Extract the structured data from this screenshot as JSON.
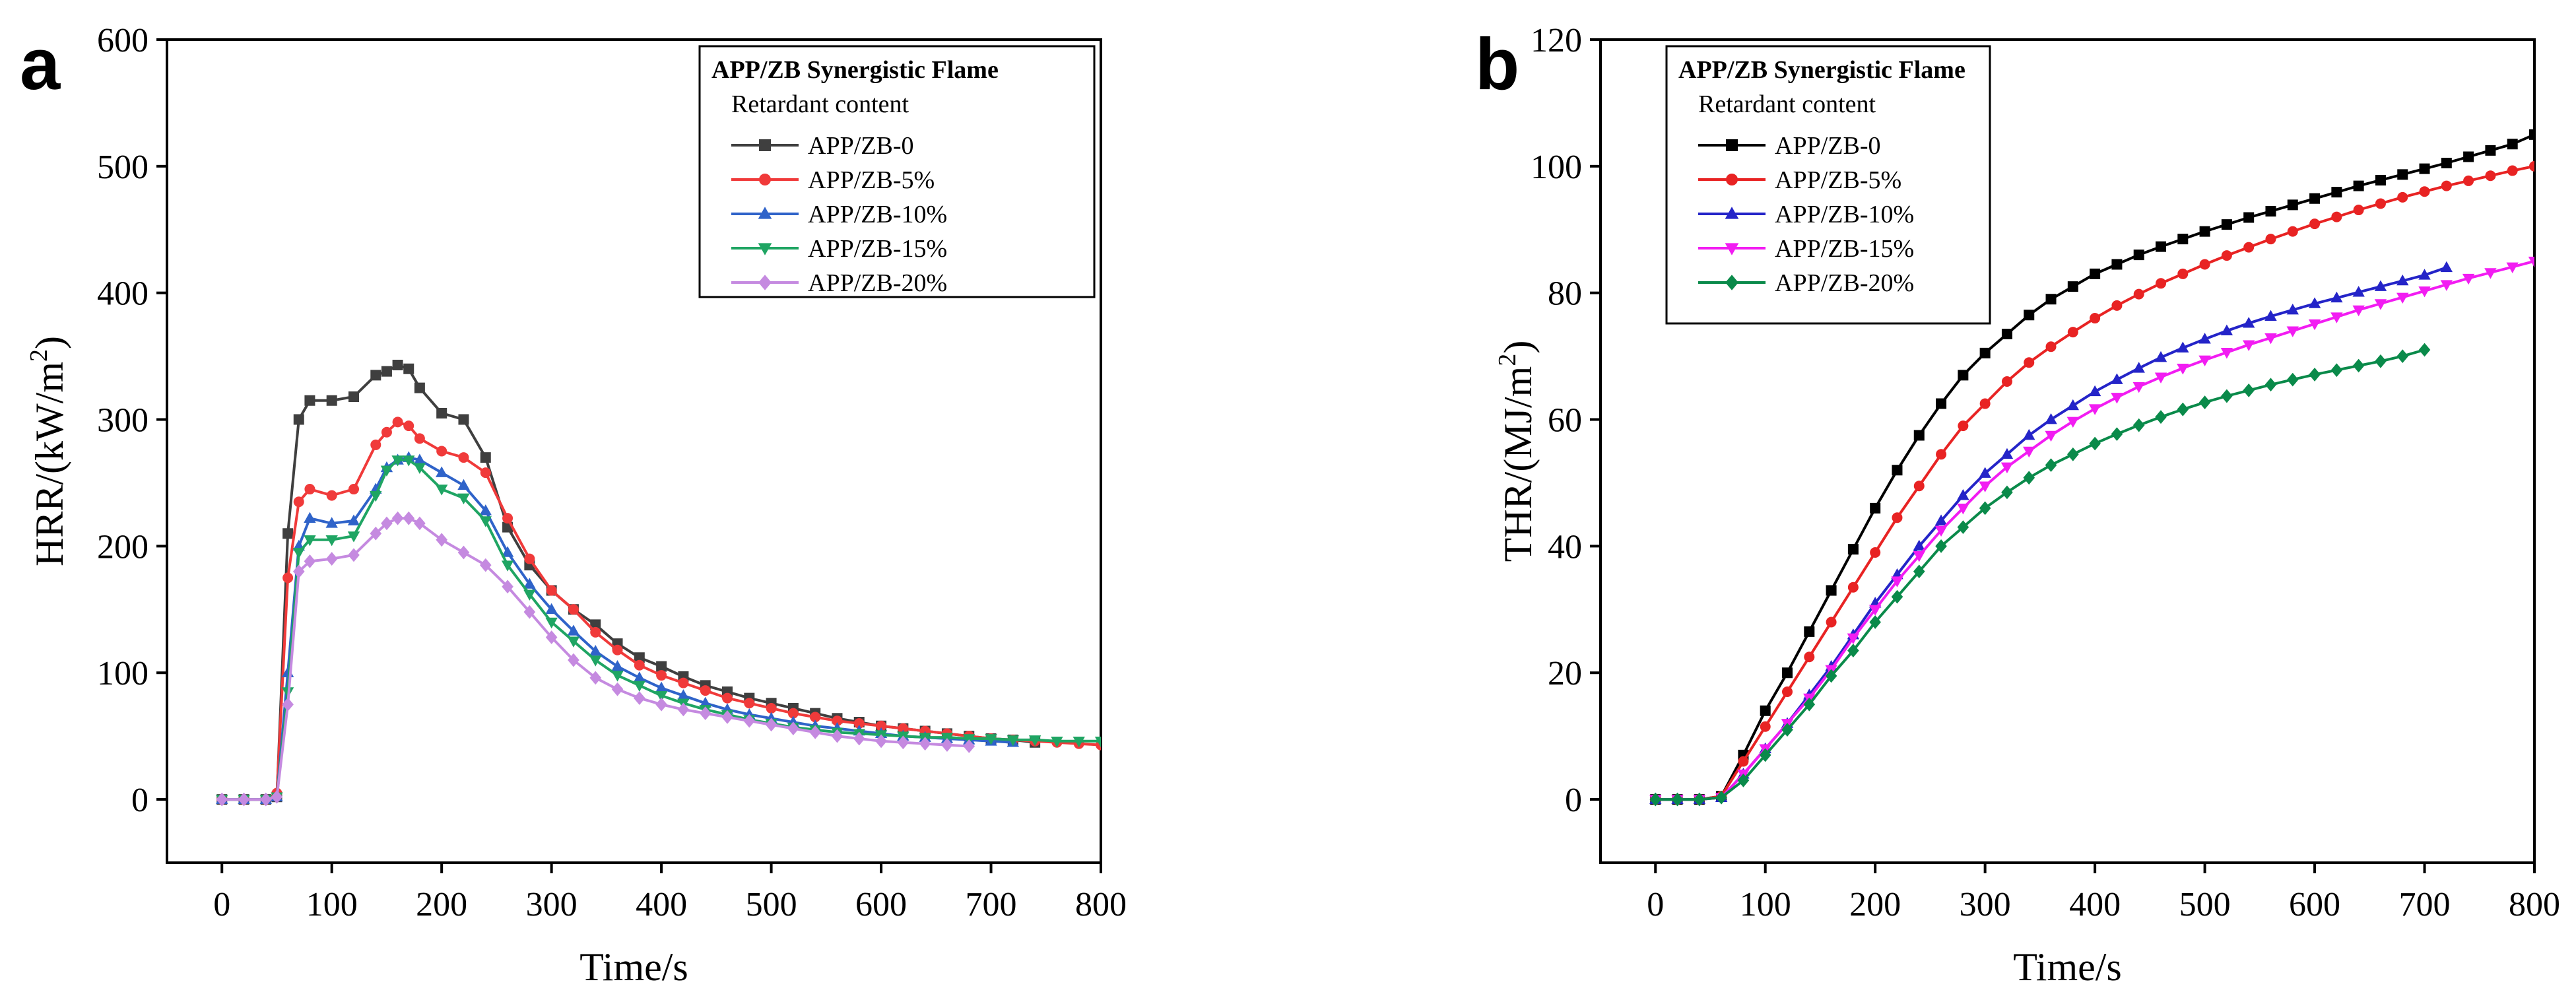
{
  "chart_data": [
    {
      "type": "line",
      "panel_label": "a",
      "title": "",
      "xlabel": "Time/s",
      "ylabel_main": "HRR/(kW/m",
      "ylabel_sup": "2",
      "ylabel_tail": ")",
      "xlim": [
        -50,
        800
      ],
      "ylim": [
        -50,
        600
      ],
      "xticks": [
        0,
        100,
        200,
        300,
        400,
        500,
        600,
        700,
        800
      ],
      "yticks": [
        0,
        100,
        200,
        300,
        400,
        500,
        600
      ],
      "legend_title_line1": "APP/ZB Synergistic Flame",
      "legend_title_line2": "Retardant content",
      "legend_position": "top-right",
      "series": [
        {
          "name": "APP/ZB-0",
          "color": "#3f3f3f",
          "marker": "square",
          "x": [
            0,
            20,
            40,
            50,
            60,
            70,
            80,
            100,
            120,
            140,
            150,
            160,
            170,
            180,
            200,
            220,
            240,
            260,
            280,
            300,
            320,
            340,
            360,
            380,
            400,
            420,
            440,
            460,
            480,
            500,
            520,
            540,
            560,
            580,
            600,
            620,
            640,
            660,
            680,
            700,
            720,
            740
          ],
          "y": [
            0,
            0,
            0,
            2,
            210,
            300,
            315,
            315,
            318,
            335,
            338,
            343,
            340,
            325,
            305,
            300,
            270,
            215,
            185,
            165,
            150,
            138,
            123,
            112,
            105,
            97,
            90,
            85,
            80,
            76,
            72,
            68,
            64,
            61,
            58,
            56,
            54,
            52,
            50,
            48,
            47,
            45
          ]
        },
        {
          "name": "APP/ZB-5%",
          "color": "#f03a3a",
          "marker": "circle",
          "x": [
            0,
            20,
            40,
            50,
            60,
            70,
            80,
            100,
            120,
            140,
            150,
            160,
            170,
            180,
            200,
            220,
            240,
            260,
            280,
            300,
            320,
            340,
            360,
            380,
            400,
            420,
            440,
            460,
            480,
            500,
            520,
            540,
            560,
            580,
            600,
            620,
            640,
            660,
            680,
            700,
            720,
            740,
            760,
            780,
            800
          ],
          "y": [
            0,
            0,
            0,
            5,
            175,
            235,
            245,
            240,
            245,
            280,
            290,
            298,
            295,
            285,
            275,
            270,
            258,
            222,
            190,
            165,
            150,
            132,
            118,
            106,
            98,
            92,
            86,
            80,
            76,
            72,
            68,
            65,
            62,
            60,
            58,
            56,
            54,
            52,
            50,
            48,
            47,
            46,
            45,
            44,
            43
          ]
        },
        {
          "name": "APP/ZB-10%",
          "color": "#2f63c9",
          "marker": "triangle-up",
          "x": [
            0,
            20,
            40,
            50,
            60,
            70,
            80,
            100,
            120,
            140,
            150,
            160,
            170,
            180,
            200,
            220,
            240,
            260,
            280,
            300,
            320,
            340,
            360,
            380,
            400,
            420,
            440,
            460,
            480,
            500,
            520,
            540,
            560,
            580,
            600,
            620,
            640,
            660,
            680,
            700,
            720
          ],
          "y": [
            0,
            0,
            0,
            2,
            100,
            200,
            222,
            218,
            220,
            245,
            262,
            268,
            270,
            268,
            258,
            248,
            228,
            195,
            170,
            150,
            133,
            117,
            105,
            96,
            88,
            82,
            76,
            71,
            67,
            64,
            61,
            58,
            56,
            54,
            52,
            50,
            49,
            48,
            47,
            46,
            45
          ]
        },
        {
          "name": "APP/ZB-15%",
          "color": "#1fa563",
          "marker": "triangle-down",
          "x": [
            0,
            20,
            40,
            50,
            60,
            70,
            80,
            100,
            120,
            140,
            150,
            160,
            170,
            180,
            200,
            220,
            240,
            260,
            280,
            300,
            320,
            340,
            360,
            380,
            400,
            420,
            440,
            460,
            480,
            500,
            520,
            540,
            560,
            580,
            600,
            620,
            640,
            660,
            680,
            700,
            720,
            740,
            760,
            780,
            800
          ],
          "y": [
            0,
            0,
            0,
            2,
            85,
            195,
            205,
            205,
            208,
            240,
            260,
            268,
            268,
            262,
            245,
            238,
            220,
            185,
            162,
            140,
            125,
            110,
            98,
            90,
            82,
            76,
            71,
            67,
            63,
            60,
            57,
            55,
            53,
            52,
            51,
            50,
            49,
            49,
            48,
            48,
            47,
            47,
            46,
            46,
            46
          ]
        },
        {
          "name": "APP/ZB-20%",
          "color": "#c58ae0",
          "marker": "diamond",
          "x": [
            0,
            20,
            40,
            50,
            60,
            70,
            80,
            100,
            120,
            140,
            150,
            160,
            170,
            180,
            200,
            220,
            240,
            260,
            280,
            300,
            320,
            340,
            360,
            380,
            400,
            420,
            440,
            460,
            480,
            500,
            520,
            540,
            560,
            580,
            600,
            620,
            640,
            660,
            680
          ],
          "y": [
            0,
            0,
            0,
            2,
            75,
            180,
            188,
            190,
            193,
            210,
            218,
            222,
            222,
            218,
            205,
            195,
            185,
            168,
            148,
            128,
            110,
            96,
            87,
            80,
            75,
            71,
            68,
            65,
            62,
            59,
            56,
            53,
            50,
            48,
            46,
            45,
            44,
            43,
            42
          ]
        }
      ]
    },
    {
      "type": "line",
      "panel_label": "b",
      "title": "",
      "xlabel": "Time/s",
      "ylabel_main": "THR/(MJ/m",
      "ylabel_sup": "2",
      "ylabel_tail": ")",
      "xlim": [
        -50,
        800
      ],
      "ylim": [
        -10,
        120
      ],
      "xticks": [
        0,
        100,
        200,
        300,
        400,
        500,
        600,
        700,
        800
      ],
      "yticks": [
        0,
        20,
        40,
        60,
        80,
        100,
        120
      ],
      "legend_title_line1": "APP/ZB Synergistic Flame",
      "legend_title_line2": "Retardant content",
      "legend_position": "top-left",
      "series": [
        {
          "name": "APP/ZB-0",
          "color": "#000000",
          "marker": "square",
          "x": [
            0,
            20,
            40,
            60,
            80,
            100,
            120,
            140,
            160,
            180,
            200,
            220,
            240,
            260,
            280,
            300,
            320,
            340,
            360,
            380,
            400,
            420,
            440,
            460,
            480,
            500,
            520,
            540,
            560,
            580,
            600,
            620,
            640,
            660,
            680,
            700,
            720,
            740,
            760,
            780,
            800
          ],
          "y": [
            0,
            0,
            0,
            0.5,
            7,
            14,
            20,
            26.5,
            33,
            39.5,
            46,
            52,
            57.5,
            62.5,
            67,
            70.5,
            73.5,
            76.5,
            79,
            81,
            83,
            84.5,
            86,
            87.3,
            88.5,
            89.7,
            90.8,
            91.9,
            92.9,
            93.9,
            94.9,
            95.9,
            96.9,
            97.8,
            98.7,
            99.6,
            100.5,
            101.5,
            102.5,
            103.5,
            105
          ]
        },
        {
          "name": "APP/ZB-5%",
          "color": "#e82323",
          "marker": "circle",
          "x": [
            0,
            20,
            40,
            60,
            80,
            100,
            120,
            140,
            160,
            180,
            200,
            220,
            240,
            260,
            280,
            300,
            320,
            340,
            360,
            380,
            400,
            420,
            440,
            460,
            480,
            500,
            520,
            540,
            560,
            580,
            600,
            620,
            640,
            660,
            680,
            700,
            720,
            740,
            760,
            780,
            800
          ],
          "y": [
            0,
            0,
            0,
            0.5,
            6,
            11.5,
            17,
            22.5,
            28,
            33.5,
            39,
            44.5,
            49.5,
            54.5,
            59,
            62.5,
            66,
            69,
            71.5,
            73.8,
            76,
            78,
            79.8,
            81.5,
            83,
            84.5,
            85.9,
            87.2,
            88.5,
            89.7,
            90.9,
            92,
            93.1,
            94.1,
            95.1,
            96,
            96.9,
            97.7,
            98.5,
            99.3,
            100
          ]
        },
        {
          "name": "APP/ZB-10%",
          "color": "#2424c8",
          "marker": "triangle-up",
          "x": [
            0,
            20,
            40,
            60,
            80,
            100,
            120,
            140,
            160,
            180,
            200,
            220,
            240,
            260,
            280,
            300,
            320,
            340,
            360,
            380,
            400,
            420,
            440,
            460,
            480,
            500,
            520,
            540,
            560,
            580,
            600,
            620,
            640,
            660,
            680,
            700,
            720
          ],
          "y": [
            0,
            0,
            0,
            0.3,
            4,
            8,
            12,
            16.5,
            21,
            26,
            31,
            35.5,
            40,
            44,
            48,
            51.5,
            54.5,
            57.5,
            60,
            62.2,
            64.4,
            66.3,
            68.1,
            69.8,
            71.3,
            72.7,
            74,
            75.2,
            76.3,
            77.3,
            78.3,
            79.2,
            80.1,
            81,
            81.9,
            82.8,
            84
          ]
        },
        {
          "name": "APP/ZB-15%",
          "color": "#f21cf2",
          "marker": "triangle-down",
          "x": [
            0,
            20,
            40,
            60,
            80,
            100,
            120,
            140,
            160,
            180,
            200,
            220,
            240,
            260,
            280,
            300,
            320,
            340,
            360,
            380,
            400,
            420,
            440,
            460,
            480,
            500,
            520,
            540,
            560,
            580,
            600,
            620,
            640,
            660,
            680,
            700,
            720,
            740,
            760,
            780,
            800
          ],
          "y": [
            0,
            0,
            0,
            0.3,
            4,
            8,
            12,
            16,
            20.5,
            25.5,
            30,
            34.5,
            38.5,
            42.5,
            46,
            49.5,
            52.5,
            55,
            57.5,
            59.7,
            61.7,
            63.5,
            65.2,
            66.7,
            68.1,
            69.4,
            70.6,
            71.8,
            72.9,
            74,
            75.1,
            76.2,
            77.3,
            78.3,
            79.3,
            80.3,
            81.3,
            82.3,
            83.2,
            84.1,
            85
          ]
        },
        {
          "name": "APP/ZB-20%",
          "color": "#0a8a4a",
          "marker": "diamond",
          "x": [
            0,
            20,
            40,
            60,
            80,
            100,
            120,
            140,
            160,
            180,
            200,
            220,
            240,
            260,
            280,
            300,
            320,
            340,
            360,
            380,
            400,
            420,
            440,
            460,
            480,
            500,
            520,
            540,
            560,
            580,
            600,
            620,
            640,
            660,
            680,
            700
          ],
          "y": [
            0,
            0,
            0,
            0.3,
            3,
            7,
            11,
            15,
            19.5,
            23.5,
            28,
            32,
            36,
            40,
            43,
            46,
            48.5,
            50.8,
            52.8,
            54.5,
            56.2,
            57.7,
            59.1,
            60.4,
            61.6,
            62.7,
            63.7,
            64.6,
            65.5,
            66.3,
            67.1,
            67.8,
            68.5,
            69.2,
            70,
            71
          ]
        }
      ]
    }
  ]
}
